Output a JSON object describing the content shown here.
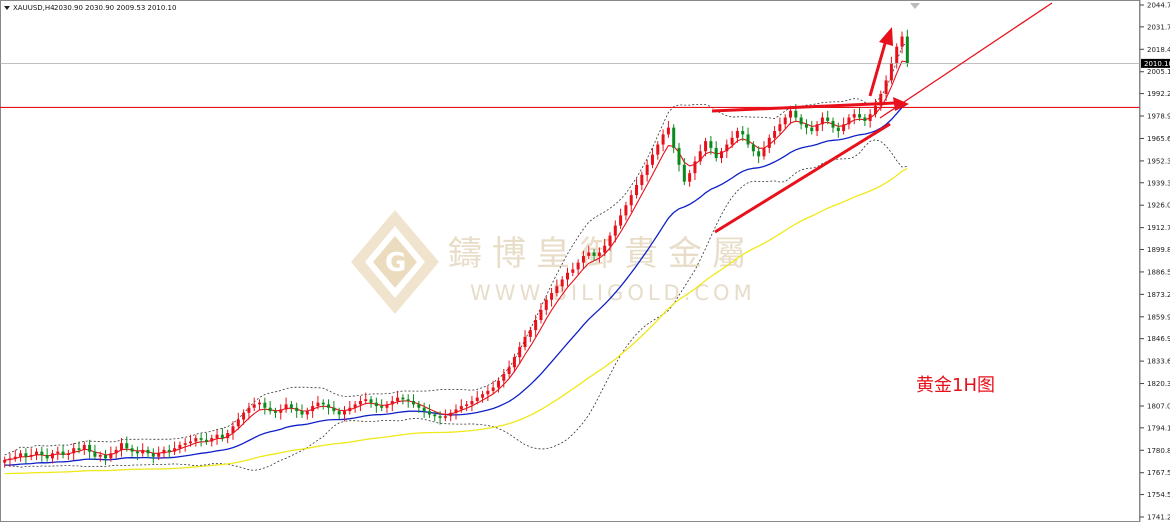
{
  "header": {
    "symbol_timeframe": "XAUUSD,H4",
    "ohlc": "2030.90 2030.90 2009.53 2010.10"
  },
  "watermark": {
    "chinese": "鑄博皇御貴金屬",
    "url": "WWW.BILIGOLD.COM"
  },
  "annotation": "黄金1H图",
  "colors": {
    "bull": "#e8101a",
    "bear": "#0a8a1a",
    "ema_fast": "#e8101a",
    "ma_mid": "#1020c8",
    "ma_slow": "#f0e81a",
    "bands": "#333333",
    "hline": "#e8101a",
    "bid_line": "#aaaaaa",
    "price_box": "#000000"
  },
  "chart_data": {
    "type": "candlestick",
    "y_axis_ticks": [
      "2044.70",
      "2031.75",
      "2018.45",
      "2005.15",
      "1992.20",
      "1978.90",
      "1965.60",
      "1952.30",
      "1939.35",
      "1926.05",
      "1912.75",
      "1899.80",
      "1886.50",
      "1873.20",
      "1859.90",
      "1846.95",
      "1833.65",
      "1820.35",
      "1807.05",
      "1794.10",
      "1780.80",
      "1767.50",
      "1754.55",
      "1741.25"
    ],
    "ylim": [
      1741.25,
      2044.7
    ],
    "current_price": "2010.10",
    "horizontal_line_price": 1984.0,
    "closes": [
      1775,
      1776,
      1777,
      1779,
      1777,
      1778,
      1780,
      1778,
      1776,
      1779,
      1780,
      1778,
      1779,
      1782,
      1781,
      1784,
      1780,
      1777,
      1778,
      1776,
      1779,
      1781,
      1785,
      1782,
      1780,
      1779,
      1781,
      1779,
      1777,
      1779,
      1781,
      1780,
      1782,
      1784,
      1785,
      1786,
      1788,
      1787,
      1786,
      1788,
      1790,
      1788,
      1791,
      1795,
      1799,
      1803,
      1806,
      1808,
      1809,
      1806,
      1804,
      1803,
      1805,
      1808,
      1806,
      1804,
      1802,
      1804,
      1807,
      1809,
      1808,
      1806,
      1804,
      1802,
      1804,
      1806,
      1808,
      1810,
      1811,
      1809,
      1807,
      1806,
      1808,
      1810,
      1812,
      1811,
      1810,
      1808,
      1806,
      1804,
      1802,
      1801,
      1800,
      1801,
      1803,
      1805,
      1807,
      1808,
      1810,
      1812,
      1814,
      1816,
      1818,
      1822,
      1826,
      1830,
      1836,
      1842,
      1848,
      1852,
      1858,
      1864,
      1870,
      1874,
      1878,
      1882,
      1886,
      1888,
      1892,
      1896,
      1898,
      1896,
      1898,
      1902,
      1908,
      1914,
      1920,
      1926,
      1932,
      1938,
      1944,
      1950,
      1956,
      1962,
      1968,
      1972,
      1960,
      1950,
      1940,
      1945,
      1952,
      1958,
      1964,
      1960,
      1954,
      1958,
      1962,
      1966,
      1970,
      1968,
      1962,
      1958,
      1955,
      1960,
      1966,
      1970,
      1974,
      1978,
      1982,
      1978,
      1974,
      1972,
      1970,
      1974,
      1978,
      1976,
      1972,
      1970,
      1974,
      1978,
      1980,
      1978,
      1976,
      1980,
      1985,
      1992,
      2000,
      2010,
      2020,
      2026,
      2010
    ],
    "annotations": [
      "黄金1H图"
    ]
  }
}
